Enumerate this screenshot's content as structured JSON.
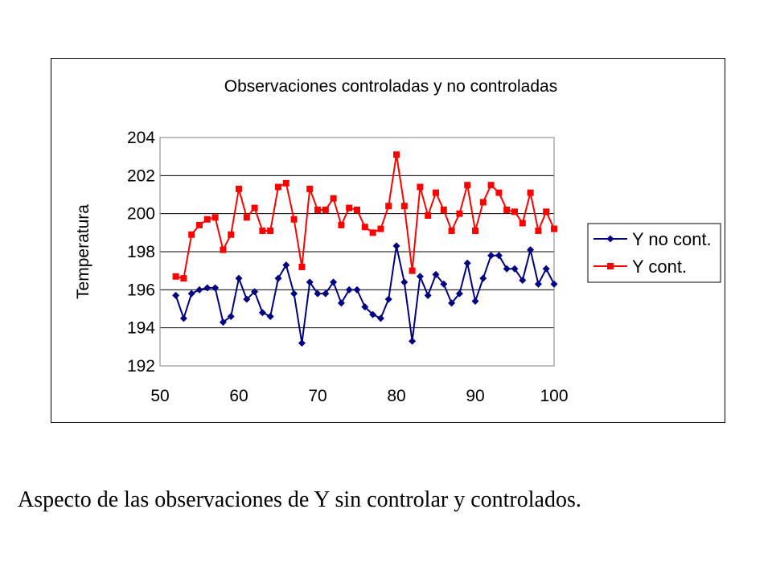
{
  "caption": "Aspecto de las observaciones de Y sin controlar y controlados.",
  "colors": {
    "y_no_cont": "#000080",
    "y_cont": "#ff0000",
    "grid": "#000000",
    "plot_bg": "#ffffff"
  },
  "chart_data": {
    "type": "line",
    "title": "Observaciones controladas y no controladas",
    "xlabel": "",
    "ylabel": "Temperatura",
    "xlim": [
      50,
      100
    ],
    "ylim": [
      192,
      204
    ],
    "xticks": [
      "50",
      "60",
      "70",
      "80",
      "90",
      "100"
    ],
    "yticks": [
      "192",
      "194",
      "196",
      "198",
      "200",
      "202",
      "204"
    ],
    "grid": "horizontal",
    "legend_position": "right",
    "x": [
      52,
      53,
      54,
      55,
      56,
      57,
      58,
      59,
      60,
      61,
      62,
      63,
      64,
      65,
      66,
      67,
      68,
      69,
      70,
      71,
      72,
      73,
      74,
      75,
      76,
      77,
      78,
      79,
      80,
      81,
      82,
      83,
      84,
      85,
      86,
      87,
      88,
      89,
      90,
      91,
      92,
      93,
      94,
      95,
      96,
      97,
      98,
      99,
      100
    ],
    "series": [
      {
        "name": "Y no cont.",
        "marker": "diamond",
        "values": [
          195.7,
          194.5,
          195.8,
          196.0,
          196.1,
          196.1,
          194.3,
          194.6,
          196.6,
          195.5,
          195.9,
          194.8,
          194.6,
          196.6,
          197.3,
          195.8,
          193.2,
          196.4,
          195.8,
          195.8,
          196.4,
          195.3,
          196.0,
          196.0,
          195.1,
          194.7,
          194.5,
          195.5,
          198.3,
          196.4,
          193.3,
          196.7,
          195.7,
          196.8,
          196.3,
          195.3,
          195.8,
          197.4,
          195.4,
          196.6,
          197.8,
          197.8,
          197.1,
          197.1,
          196.5,
          198.1,
          196.3,
          197.1,
          196.3
        ]
      },
      {
        "name": "Y cont.",
        "marker": "square",
        "values": [
          196.7,
          196.6,
          198.9,
          199.4,
          199.7,
          199.8,
          198.1,
          198.9,
          201.3,
          199.8,
          200.3,
          199.1,
          199.1,
          201.4,
          201.6,
          199.7,
          197.2,
          201.3,
          200.2,
          200.2,
          200.8,
          199.4,
          200.3,
          200.2,
          199.3,
          199.0,
          199.2,
          200.4,
          203.1,
          200.4,
          197.0,
          201.4,
          199.9,
          201.1,
          200.2,
          199.1,
          200.0,
          201.5,
          199.1,
          200.6,
          201.5,
          201.1,
          200.2,
          200.1,
          199.5,
          201.1,
          199.1,
          200.1,
          199.2
        ]
      }
    ]
  }
}
